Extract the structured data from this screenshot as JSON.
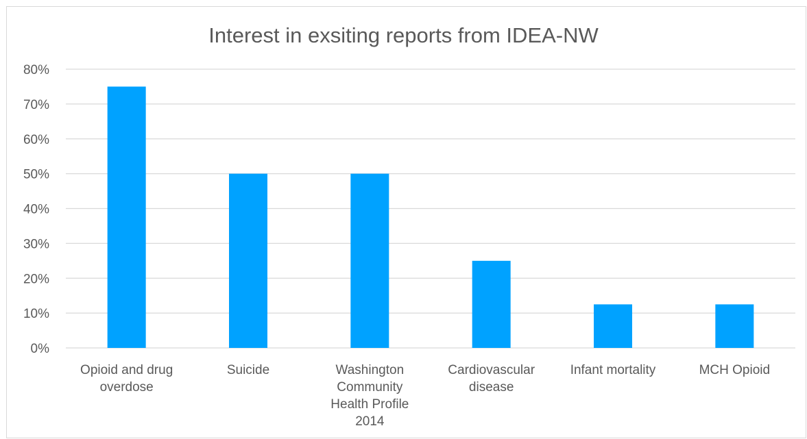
{
  "chart_data": {
    "type": "bar",
    "title": "Interest in exsiting reports from IDEA-NW",
    "xlabel": "",
    "ylabel": "",
    "categories": [
      [
        "Opioid and drug",
        "overdose"
      ],
      [
        "Suicide"
      ],
      [
        "Washington",
        "Community",
        "Health Profile",
        "2014"
      ],
      [
        "Cardiovascular",
        "disease"
      ],
      [
        "Infant mortality"
      ],
      [
        "MCH Opioid"
      ]
    ],
    "values": [
      75,
      50,
      50,
      25,
      12.5,
      12.5
    ],
    "ylim": [
      0,
      80
    ],
    "yticks": [
      0,
      10,
      20,
      30,
      40,
      50,
      60,
      70,
      80
    ],
    "ytick_labels": [
      "0%",
      "10%",
      "20%",
      "30%",
      "40%",
      "50%",
      "60%",
      "70%",
      "80%"
    ],
    "grid": true,
    "legend": "none",
    "bar_color": "#00a2ff",
    "grid_color": "#d9d9d9"
  }
}
